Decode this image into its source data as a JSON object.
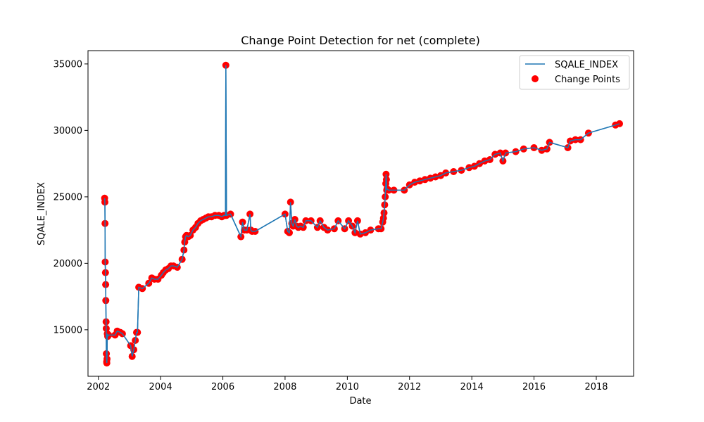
{
  "chart_data": {
    "type": "line",
    "title": "Change Point Detection for net (complete)",
    "xlabel": "Date",
    "ylabel": "SQALE_INDEX",
    "xlim": [
      "2001-09-01",
      "2019-03-15"
    ],
    "ylim": [
      11500,
      36000
    ],
    "x_ticks": [
      "2002",
      "2004",
      "2006",
      "2008",
      "2010",
      "2012",
      "2014",
      "2016",
      "2018"
    ],
    "y_ticks": [
      15000,
      20000,
      25000,
      30000,
      35000
    ],
    "grid": false,
    "legend": {
      "position": "top-right",
      "entries": [
        "SQALE_INDEX",
        "Change Points"
      ]
    },
    "colors": {
      "line": "#1f77b4",
      "points": "#ff0000"
    },
    "series": [
      {
        "name": "SQALE_INDEX",
        "x": [
          "2002-03-15",
          "2002-03-18",
          "2002-03-20",
          "2002-03-22",
          "2002-03-25",
          "2002-03-27",
          "2002-03-29",
          "2002-04-01",
          "2002-04-03",
          "2002-04-05",
          "2002-04-08",
          "2002-04-10",
          "2002-04-12",
          "2002-04-15",
          "2002-04-20",
          "2002-05-01",
          "2002-07-15",
          "2002-08-10",
          "2002-09-15",
          "2002-10-10",
          "2003-01-15",
          "2003-02-01",
          "2003-02-20",
          "2003-03-10",
          "2003-03-25",
          "2003-04-05",
          "2003-04-20",
          "2003-06-01",
          "2003-08-15",
          "2003-09-20",
          "2003-10-20",
          "2003-12-01",
          "2004-01-10",
          "2004-02-01",
          "2004-03-01",
          "2004-04-01",
          "2004-05-01",
          "2004-06-01",
          "2004-07-15",
          "2004-09-10",
          "2004-10-01",
          "2004-10-10",
          "2004-10-20",
          "2004-11-01",
          "2004-11-20",
          "2004-12-15",
          "2005-01-15",
          "2005-02-15",
          "2005-03-15",
          "2005-04-15",
          "2005-05-15",
          "2005-06-15",
          "2005-07-15",
          "2005-08-20",
          "2005-10-01",
          "2005-11-15",
          "2005-12-20",
          "2006-01-15",
          "2006-02-01",
          "2006-02-05",
          "2006-02-12",
          "2006-04-01",
          "2006-08-01",
          "2006-08-20",
          "2006-09-10",
          "2006-10-10",
          "2006-11-15",
          "2006-11-25",
          "2006-12-10",
          "2007-01-15",
          "2008-01-01",
          "2008-02-01",
          "2008-02-20",
          "2008-03-05",
          "2008-03-20",
          "2008-04-05",
          "2008-04-25",
          "2008-05-15",
          "2008-06-05",
          "2008-07-01",
          "2008-08-01",
          "2008-09-01",
          "2008-11-01",
          "2009-01-15",
          "2009-02-15",
          "2009-04-01",
          "2009-05-15",
          "2009-08-01",
          "2009-09-15",
          "2009-12-01",
          "2010-01-15",
          "2010-03-01",
          "2010-04-01",
          "2010-05-01",
          "2010-06-01",
          "2010-08-01",
          "2010-10-01",
          "2011-01-01",
          "2011-02-01",
          "2011-02-20",
          "2011-03-01",
          "2011-03-08",
          "2011-03-15",
          "2011-03-22",
          "2011-03-28",
          "2011-04-01",
          "2011-04-05",
          "2011-04-08",
          "2011-04-12",
          "2011-05-01",
          "2011-07-01",
          "2011-11-01",
          "2012-01-01",
          "2012-03-01",
          "2012-05-01",
          "2012-07-01",
          "2012-09-01",
          "2012-11-01",
          "2013-01-01",
          "2013-03-01",
          "2013-06-01",
          "2013-09-01",
          "2013-12-01",
          "2014-02-01",
          "2014-04-01",
          "2014-06-01",
          "2014-08-01",
          "2014-10-01",
          "2014-12-01",
          "2015-01-01",
          "2015-02-01",
          "2015-06-01",
          "2015-09-01",
          "2016-01-01",
          "2016-04-01",
          "2016-06-01",
          "2016-07-01",
          "2017-02-01",
          "2017-03-01",
          "2017-05-01",
          "2017-07-01",
          "2017-10-01",
          "2018-08-15",
          "2018-10-01"
        ],
        "y": [
          24900,
          24600,
          23000,
          20100,
          19300,
          18400,
          17200,
          15600,
          15100,
          13200,
          12600,
          12500,
          12800,
          14700,
          14500,
          14600,
          14600,
          14900,
          14800,
          14700,
          13800,
          13000,
          13500,
          14200,
          14800,
          14800,
          18200,
          18100,
          18500,
          18900,
          18800,
          18800,
          19100,
          19300,
          19500,
          19600,
          19800,
          19800,
          19700,
          20300,
          21000,
          21600,
          22000,
          22100,
          22000,
          22100,
          22500,
          22700,
          23000,
          23200,
          23300,
          23400,
          23500,
          23500,
          23600,
          23600,
          23500,
          23600,
          23600,
          34900,
          23600,
          23700,
          22000,
          23100,
          22500,
          22500,
          23700,
          22500,
          22400,
          22400,
          23700,
          22400,
          22300,
          24600,
          23000,
          22800,
          23300,
          22800,
          22700,
          22800,
          22700,
          23200,
          23200,
          22700,
          23200,
          22700,
          22500,
          22600,
          23200,
          22600,
          23200,
          22800,
          22300,
          23200,
          22200,
          22300,
          22500,
          22600,
          22600,
          23100,
          23400,
          23800,
          24400,
          25000,
          26000,
          26700,
          26300,
          25500,
          25600,
          25500,
          25500,
          25500,
          25900,
          26100,
          26200,
          26300,
          26400,
          26500,
          26600,
          26800,
          26900,
          27000,
          27200,
          27300,
          27500,
          27700,
          27800,
          28200,
          28300,
          27700,
          28300,
          28400,
          28600,
          28700,
          28500,
          28600,
          29100,
          28700,
          29200,
          29300,
          29300,
          29800,
          30400,
          30500
        ]
      }
    ]
  }
}
